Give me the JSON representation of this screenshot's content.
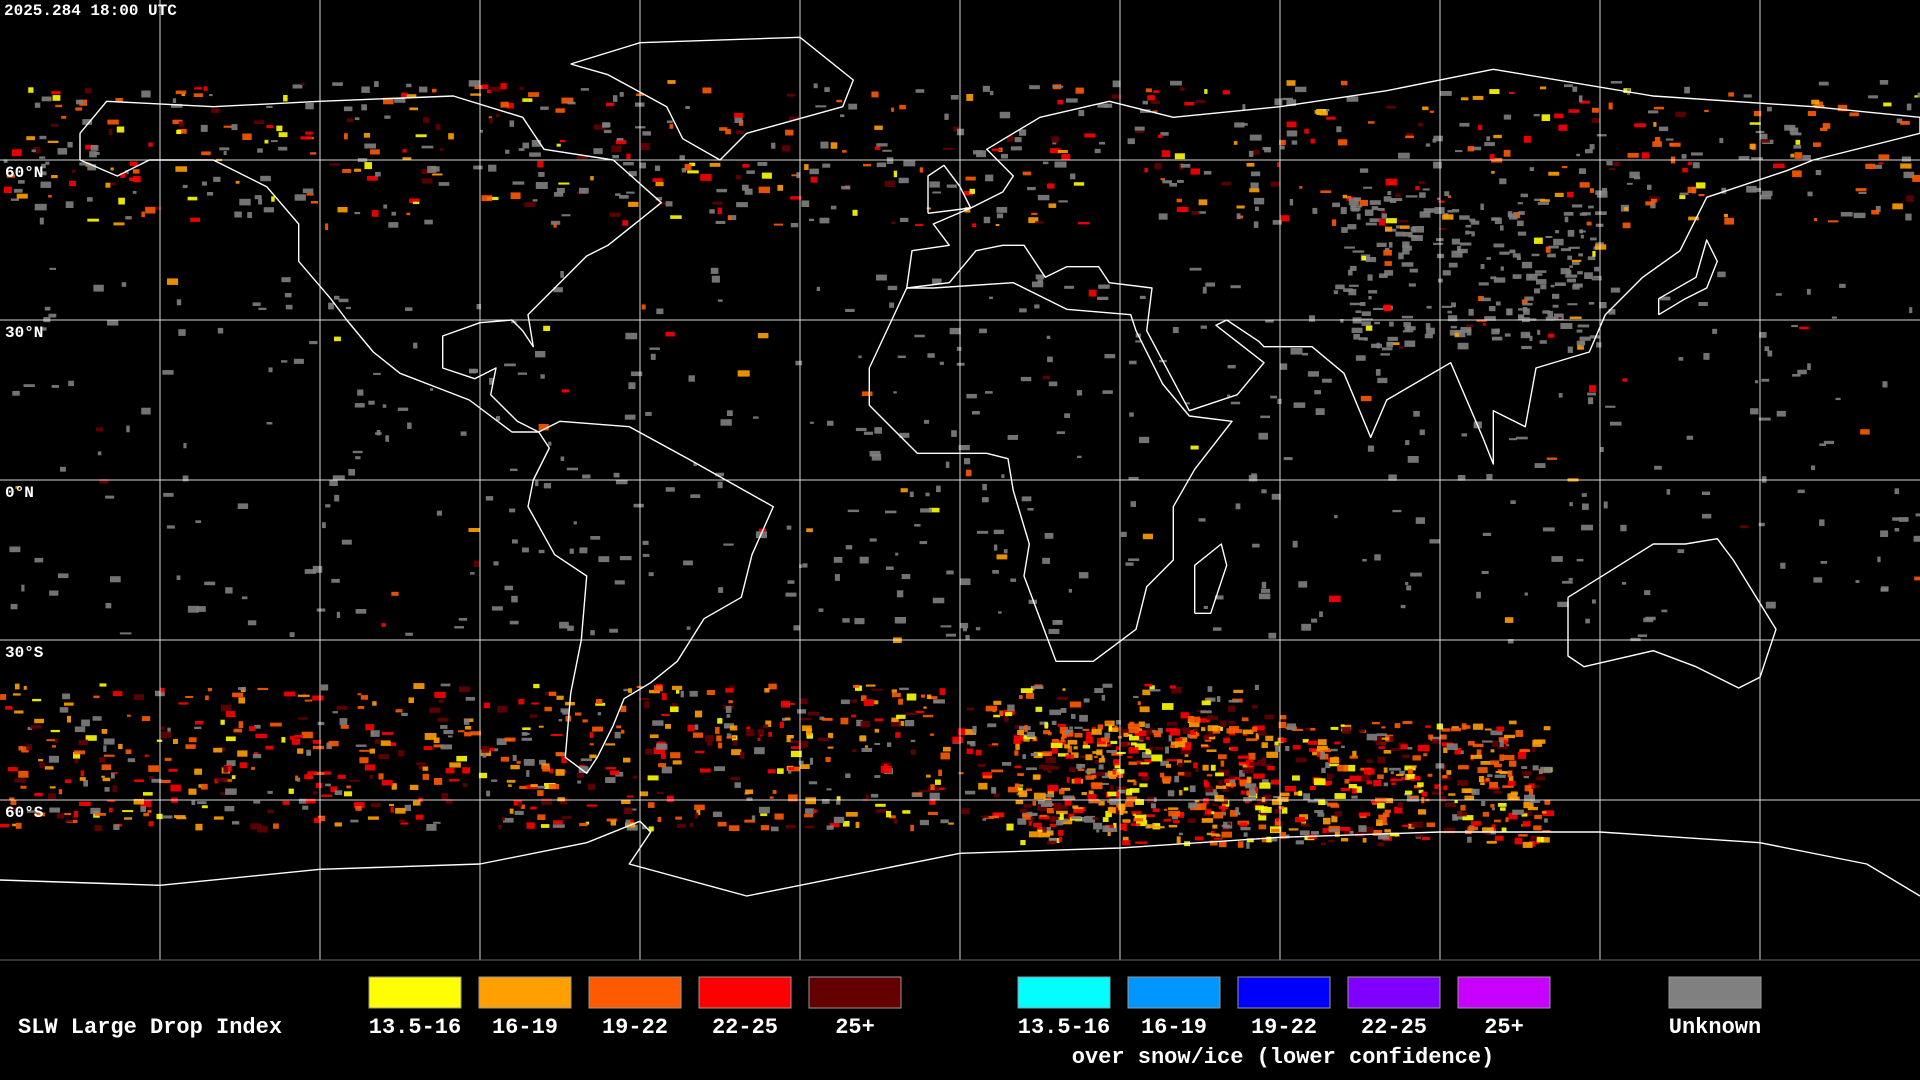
{
  "header": {
    "timestamp": "2025.284 18:00 UTC"
  },
  "map": {
    "lat_lines": [
      {
        "value": 60,
        "label": "60°N"
      },
      {
        "value": 30,
        "label": "30°N"
      },
      {
        "value": 0,
        "label": "0°N"
      },
      {
        "value": -30,
        "label": "30°S"
      },
      {
        "value": -60,
        "label": "60°S"
      }
    ]
  },
  "legend": {
    "title": "SLW Large Drop Index",
    "items": [
      {
        "label": "13.5-16",
        "color": "#ffff00"
      },
      {
        "label": "16-19",
        "color": "#ffa000"
      },
      {
        "label": "19-22",
        "color": "#ff5a00"
      },
      {
        "label": "22-25",
        "color": "#ff0000"
      },
      {
        "label": "25+",
        "color": "#640000"
      }
    ],
    "snow_items": [
      {
        "label": "13.5-16",
        "color": "#00ffff"
      },
      {
        "label": "16-19",
        "color": "#0096ff"
      },
      {
        "label": "19-22",
        "color": "#0000ff"
      },
      {
        "label": "22-25",
        "color": "#8000ff"
      },
      {
        "label": "25+",
        "color": "#c800ff"
      }
    ],
    "snow_caption": "over snow/ice (lower confidence)",
    "unknown": {
      "label": "Unknown",
      "color": "#808080"
    }
  }
}
